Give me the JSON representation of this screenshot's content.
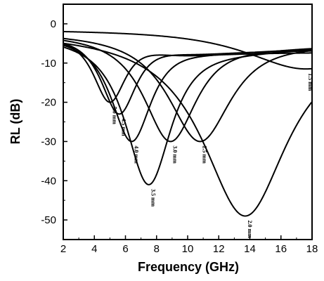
{
  "chart_data": {
    "type": "line",
    "xlabel": "Frequency (GHz)",
    "ylabel": "RL (dB)",
    "xlim": [
      2,
      18
    ],
    "ylim": [
      -55,
      5
    ],
    "xticks": [
      2,
      4,
      6,
      8,
      10,
      12,
      14,
      16,
      18
    ],
    "yticks": [
      0,
      -10,
      -20,
      -30,
      -40,
      -50
    ],
    "grid": false,
    "legend": "none",
    "series": [
      {
        "label": "5.0 mm",
        "f0": 5.0,
        "min": -20,
        "w": 1.4,
        "end": -12
      },
      {
        "label": "4.5 mm",
        "f0": 5.6,
        "min": -23,
        "w": 1.5,
        "end": -11
      },
      {
        "label": "4.0 mm",
        "f0": 6.4,
        "min": -30,
        "w": 1.7,
        "end": -10
      },
      {
        "label": "3.5 mm",
        "f0": 7.5,
        "min": -41,
        "w": 1.9,
        "end": -9
      },
      {
        "label": "3.0 mm",
        "f0": 8.9,
        "min": -30,
        "w": 2.2,
        "end": -8
      },
      {
        "label": "2.5 mm",
        "f0": 10.8,
        "min": -30,
        "w": 2.6,
        "end": -7
      },
      {
        "label": "2.0 mm",
        "f0": 13.7,
        "min": -49,
        "w": 3.4,
        "end": -6
      },
      {
        "label": "1.5 mm",
        "f0": 17.6,
        "min": -11.5,
        "w": 5.0,
        "end": -5
      }
    ]
  }
}
